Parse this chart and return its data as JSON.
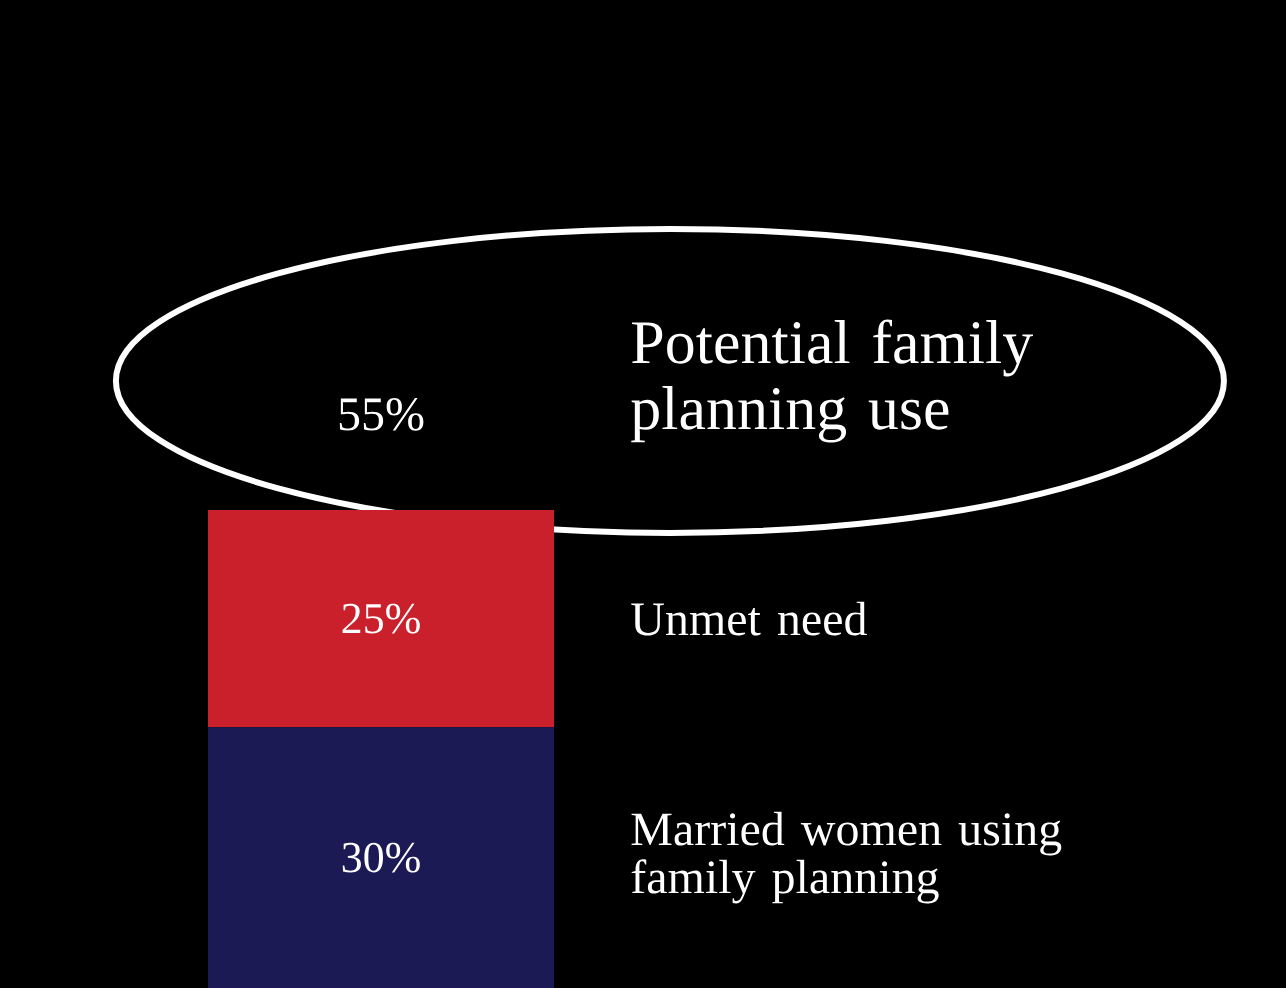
{
  "chart_data": {
    "type": "bar",
    "stacked": true,
    "categories": [
      null
    ],
    "series": [
      {
        "name": "Married women using family planning",
        "color": "#1c1a55",
        "values": [
          30
        ],
        "value_labels": [
          "30%"
        ]
      },
      {
        "name": "Unmet need",
        "color": "#c9202b",
        "values": [
          25
        ],
        "value_labels": [
          "25%"
        ]
      }
    ],
    "totals": [
      "55%"
    ],
    "annotations": [
      "Potential family planning use"
    ]
  }
}
